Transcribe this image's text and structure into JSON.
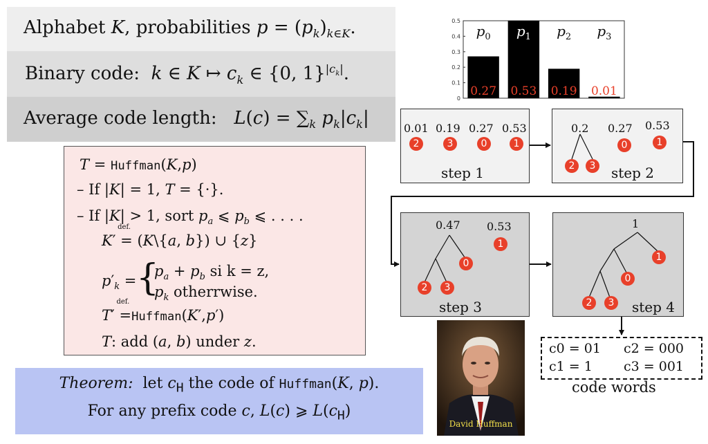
{
  "definitions": {
    "alphabet": "Alphabet K, probabilities p = (pk)k∈K.",
    "binary_code": "Binary code: k ∈ K ↦ ck ∈ {0,1}|ck|.",
    "average_length": "Average code length: L(c) = ∑k pk|ck|"
  },
  "algorithm": {
    "func": "Huffman",
    "lines": [
      "T = Huffman(K,p)",
      "– If |K| = 1, T = {·}.",
      "– If |K| > 1, sort pa ⩽ pb ⩽ . . . .",
      "K′ def.= (K\\{a,b}) ∪ {z}",
      "p′k = { pa + pb si k = z, pk otherrwise.",
      "T′ def.= Huffman(K′,p′)",
      "T: add (a,b) under z."
    ],
    "def": "def.",
    "case_sum": "si k = z,",
    "case_other": "otherrwise.",
    "add_text": "T: add (a, b) under z."
  },
  "theorem": {
    "label": "Theorem:",
    "line1": "let cH the code of Huffman(K, p).",
    "line2": "For any prefix code c, L(c) ⩾ L(cH)"
  },
  "chart_data": {
    "type": "bar",
    "categories": [
      "p0",
      "p1",
      "p2",
      "p3"
    ],
    "values": [
      0.27,
      0.53,
      0.19,
      0.01
    ],
    "value_labels": [
      "0.27",
      "0.53",
      "0.19",
      "0.01"
    ],
    "ylim": [
      0,
      0.5
    ],
    "yticks": [
      "0",
      "0.1",
      "0.2",
      "0.3",
      "0.4",
      "0.5"
    ],
    "highlight": "p1",
    "bar_color": "#000000",
    "label_color": "#e8402a"
  },
  "steps": [
    {
      "label": "step 1",
      "probs": [
        "0.01",
        "0.19",
        "0.27",
        "0.53"
      ],
      "nodes": [
        "2",
        "3",
        "0",
        "1"
      ]
    },
    {
      "label": "step 2",
      "probs": [
        "0.2",
        "0.27",
        "0.53"
      ],
      "nodes": [
        "2",
        "3",
        "0",
        "1"
      ]
    },
    {
      "label": "step 3",
      "probs": [
        "0.47",
        "0.53"
      ],
      "nodes": [
        "2",
        "3",
        "0",
        "1"
      ]
    },
    {
      "label": "step 4",
      "probs": [
        "1"
      ],
      "nodes": [
        "2",
        "3",
        "0",
        "1"
      ]
    }
  ],
  "code_words": {
    "c0": "c0 = 01",
    "c1": "c1 = 1",
    "c2": "c2 = 000",
    "c3": "c3 = 001",
    "caption": "code words"
  },
  "photo": {
    "caption": "David Huffman"
  },
  "colors": {
    "node": "#e8402a",
    "theorem_bg": "#b9c4f3",
    "algo_bg": "#fbe7e6"
  }
}
